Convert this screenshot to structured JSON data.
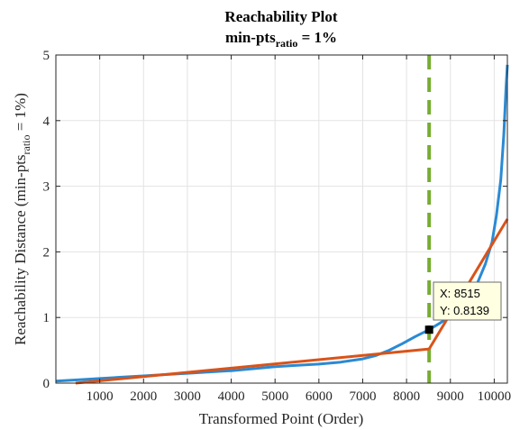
{
  "chart_data": {
    "type": "line",
    "title": "Reachability Plot",
    "subtitle": {
      "prefix": "min-pts",
      "subscript": "ratio",
      "suffix": " = 1%"
    },
    "xlabel": "Transformed Point (Order)",
    "ylabel": {
      "prefix": "Reachability Distance (min-pts",
      "subscript": "ratio",
      "suffix": " = 1%)"
    },
    "xlim": [
      0,
      10300
    ],
    "ylim": [
      0,
      5
    ],
    "xticks": [
      "1000",
      "2000",
      "3000",
      "4000",
      "5000",
      "6000",
      "7000",
      "8000",
      "9000",
      "10000"
    ],
    "yticks": [
      "0",
      "1",
      "2",
      "3",
      "4",
      "5"
    ],
    "grid": true,
    "series": [
      {
        "role": "reachability-curve",
        "color": "#2a8ad4",
        "x": [
          0,
          500,
          1000,
          1500,
          2000,
          2500,
          3000,
          3500,
          4000,
          4500,
          5000,
          5500,
          6000,
          6500,
          7000,
          7300,
          7600,
          7900,
          8200,
          8515,
          8800,
          9000,
          9200,
          9400,
          9600,
          9800,
          9950,
          10050,
          10150,
          10220,
          10270,
          10300
        ],
        "y": [
          0.03,
          0.05,
          0.07,
          0.09,
          0.11,
          0.13,
          0.15,
          0.17,
          0.19,
          0.22,
          0.25,
          0.27,
          0.29,
          0.32,
          0.37,
          0.42,
          0.5,
          0.6,
          0.71,
          0.8139,
          0.93,
          1.02,
          1.14,
          1.3,
          1.5,
          1.82,
          2.15,
          2.55,
          3.1,
          3.8,
          4.5,
          4.85
        ]
      },
      {
        "role": "fit-line-left",
        "color": "#d95319",
        "x": [
          450,
          8515
        ],
        "y": [
          0.0,
          0.52
        ]
      },
      {
        "role": "fit-line-right",
        "color": "#d95319",
        "x": [
          8515,
          10300
        ],
        "y": [
          0.52,
          2.5
        ]
      }
    ],
    "threshold": {
      "x": 8515,
      "color": "#77ac30",
      "style": "dashed"
    },
    "marker": {
      "x": 8515,
      "y": 0.8139
    },
    "datatip": {
      "x_text": "X: 8515",
      "y_text": "Y: 0.8139"
    }
  }
}
